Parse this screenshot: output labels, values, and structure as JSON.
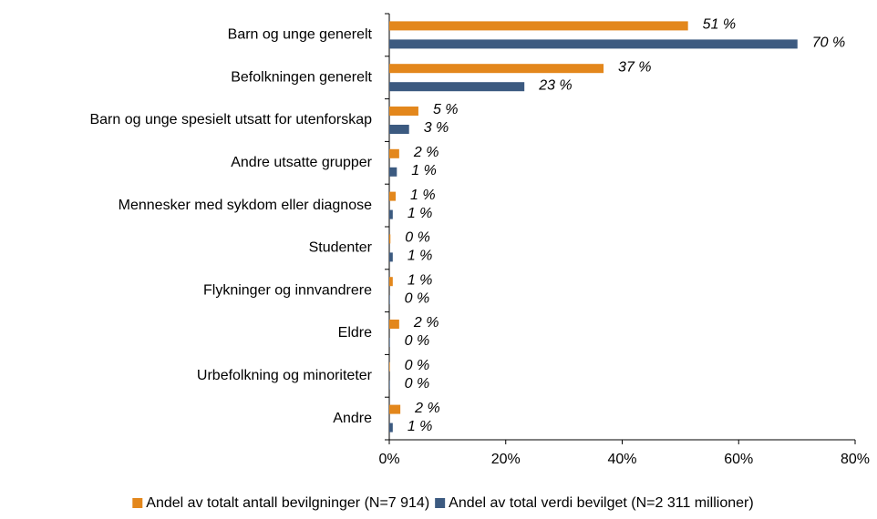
{
  "chart_data": {
    "type": "hbar",
    "categories": [
      "Barn og unge generelt",
      "Befolkningen generelt",
      "Barn og unge spesielt utsatt for utenforskap",
      "Andre utsatte grupper",
      "Mennesker med sykdom eller diagnose",
      "Studenter",
      "Flykninger og innvandrere",
      "Eldre",
      "Urbefolkning og minoriteter",
      "Andre"
    ],
    "series": [
      {
        "name": "Andel av totalt antall bevilgninger (N=7 914)",
        "color": "#e3871c",
        "values": [
          51.3,
          36.8,
          5.0,
          1.7,
          1.1,
          0.2,
          0.6,
          1.7,
          0.1,
          1.9
        ],
        "value_labels": [
          "51 %",
          "37 %",
          "5 %",
          "2 %",
          "1 %",
          "0 %",
          "1 %",
          "2 %",
          "0 %",
          "2 %"
        ]
      },
      {
        "name": "Andel av total verdi bevilget (N=2 311 millioner)",
        "color": "#3c5a80",
        "values": [
          70.1,
          23.2,
          3.4,
          1.3,
          0.6,
          0.6,
          0.1,
          0.1,
          0.1,
          0.6
        ],
        "value_labels": [
          "70 %",
          "23 %",
          "3 %",
          "1 %",
          "1 %",
          "1 %",
          "0 %",
          "0 %",
          "0 %",
          "1 %"
        ]
      }
    ],
    "xlim": [
      0,
      80
    ],
    "xticks": [
      {
        "value": 0,
        "label": "0%"
      },
      {
        "value": 20,
        "label": "20%"
      },
      {
        "value": 40,
        "label": "40%"
      },
      {
        "value": 60,
        "label": "60%"
      },
      {
        "value": 80,
        "label": "80%"
      }
    ],
    "legend": "bottom"
  }
}
